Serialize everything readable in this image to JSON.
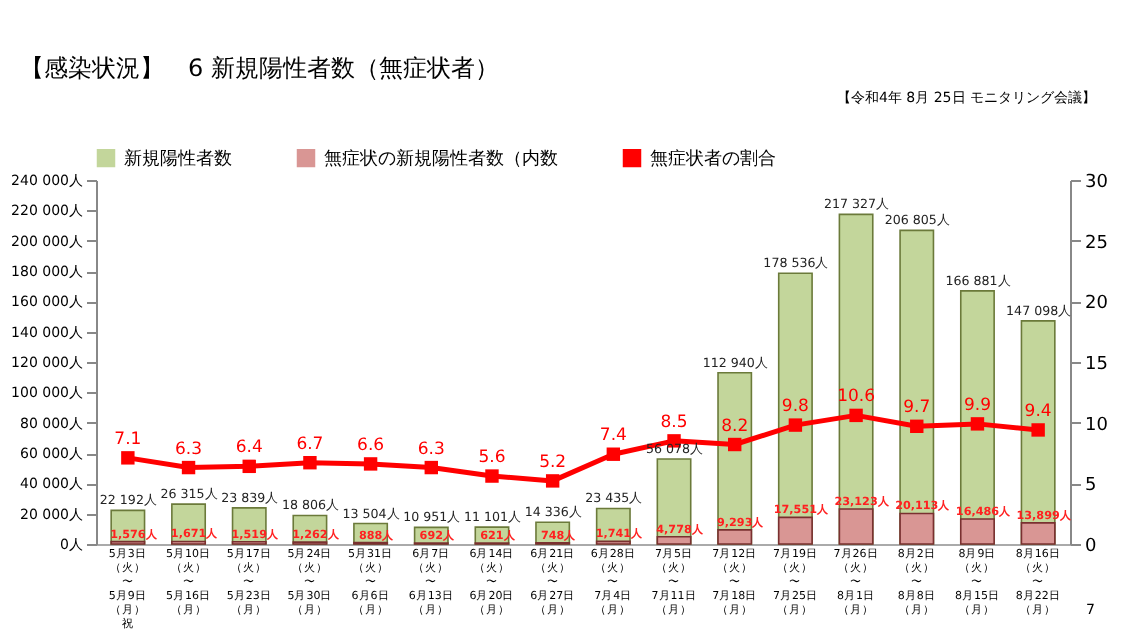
{
  "chart_data": {
    "type": "bar",
    "title": "【感染状況】　6 新規陽性者数（無症状者）",
    "annotations": [
      "【令和4年 8月 25日 モニタリング会議】",
      "7"
    ],
    "categories": [
      "5月3日（火）〜5月9日（月）祝",
      "5月10日（火）〜5月16日（月）",
      "5月17日（火）〜5月23日（月）",
      "5月24日（火）〜5月30日（月）",
      "5月31日（火）〜6月6日（月）",
      "6月7日（火）〜6月13日（月）",
      "6月14日（火）〜6月20日（月）",
      "6月21日（火）〜6月27日（月）",
      "6月28日（火）〜7月4日（月）",
      "7月5日（火）〜7月11日（月）",
      "7月12日（火）〜7月18日（月）",
      "7月19日（火）〜7月25日（月）",
      "7月26日（火）〜8月1日（月）",
      "8月2日（火）〜8月8日（月）",
      "8月9日（火）〜8月15日（月）",
      "8月16日（火）〜8月22日（月）"
    ],
    "series": [
      {
        "name": "新規陽性者数",
        "color": "#c3d69b",
        "values": [
          22192,
          26315,
          23839,
          18806,
          13504,
          10951,
          11101,
          14336,
          23435,
          56078,
          112940,
          178536,
          217327,
          206805,
          166881,
          147098
        ],
        "value_labels": [
          "22 192人",
          "26 315人",
          "23 839人",
          "18 806人",
          "13 504人",
          "10 951人",
          "11 101人",
          "14 336人",
          "23 435人",
          "56 078人",
          "112 940人",
          "178 536人",
          "217 327人",
          "206 805人",
          "166 881人",
          "147 098人"
        ]
      },
      {
        "name": "無症状の新規陽性者数（内数",
        "color": "#d99694",
        "values": [
          1576,
          1671,
          1519,
          1262,
          888,
          692,
          621,
          748,
          1741,
          4778,
          9293,
          17551,
          23123,
          20113,
          16486,
          13899
        ],
        "value_labels": [
          "1,576人",
          "1,671人",
          "1,519人",
          "1,262人",
          "888人",
          "692人",
          "621人",
          "748人",
          "1,741人",
          "4,778人",
          "9,293人",
          "17,551人",
          "23,123人",
          "20,113人",
          "16,486人",
          "13,899人"
        ]
      },
      {
        "name": "無症状者の割合",
        "type": "line",
        "axis": "y2",
        "color": "#ff0000",
        "marker": "square",
        "line_style": "solid",
        "values": [
          7.1,
          6.3,
          6.4,
          6.7,
          6.6,
          6.3,
          5.6,
          5.2,
          7.4,
          8.5,
          8.2,
          9.8,
          10.6,
          9.7,
          9.9,
          9.4
        ],
        "value_labels": [
          "7.1",
          "6.3",
          "6.4",
          "6.7",
          "6.6",
          "6.3",
          "5.6",
          "5.2",
          "7.4",
          "8.5",
          "8.2",
          "9.8",
          "10.6",
          "9.7",
          "9.9",
          "9.4"
        ]
      }
    ],
    "ylim": [
      0,
      240000
    ],
    "yticks": [
      {
        "value": 0,
        "label": "0人"
      },
      {
        "value": 20000,
        "label": "20 000人"
      },
      {
        "value": 40000,
        "label": "40 000人"
      },
      {
        "value": 60000,
        "label": "60 000人"
      },
      {
        "value": 80000,
        "label": "80 000人"
      },
      {
        "value": 100000,
        "label": "100 000人"
      },
      {
        "value": 120000,
        "label": "120 000人"
      },
      {
        "value": 140000,
        "label": "140 000人"
      },
      {
        "value": 160000,
        "label": "160 000人"
      },
      {
        "value": 180000,
        "label": "180 000人"
      },
      {
        "value": 200000,
        "label": "200 000人"
      },
      {
        "value": 220000,
        "label": "220 000人"
      },
      {
        "value": 240000,
        "label": "240 000人"
      }
    ],
    "y2lim": [
      0,
      30
    ],
    "y2ticks": [
      0,
      5,
      10,
      15,
      20,
      25,
      30
    ],
    "legend": "top",
    "grid": false
  }
}
